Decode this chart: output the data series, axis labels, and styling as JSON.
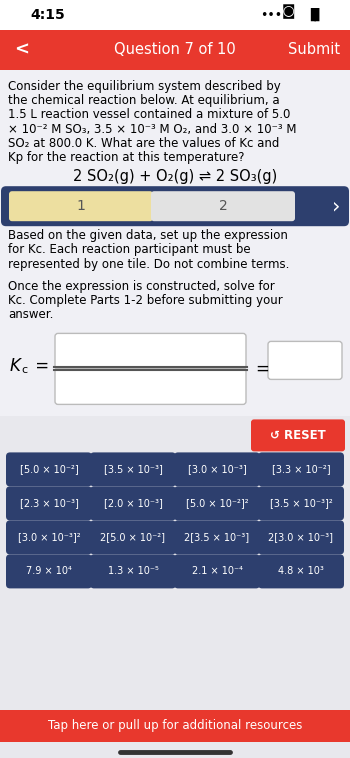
{
  "bg_color": "#f0f0f5",
  "white": "#ffffff",
  "header_color": "#e8382d",
  "header_text": "Question 7 of 10",
  "header_submit": "Submit",
  "header_back": "<",
  "status_time": "4:15",
  "problem_text_lines": [
    "Consider the equilibrium system described by",
    "the chemical reaction below. At equilibrium, a",
    "1.5 L reaction vessel contained a mixture of 5.0",
    "× 10⁻² M SO₃, 3.5 × 10⁻³ M O₂, and 3.0 × 10⁻³ M",
    "SO₂ at 800.0 K. What are the values of Kc and",
    "Kp for the reaction at this temperature?"
  ],
  "reaction": "2 SO₂(g) + O₂(g) ⇌ 2 SO₃(g)",
  "tab1": "1",
  "tab2": "2",
  "instruction1_lines": [
    "Based on the given data, set up the expression",
    "for Kc. Each reaction participant must be",
    "represented by one tile. Do not combine terms."
  ],
  "instruction2_lines": [
    "Once the expression is constructed, solve for",
    "Kc. Complete Parts 1-2 before submitting your",
    "answer."
  ],
  "tiles_bg_color": "#2d3f6e",
  "tiles": [
    [
      "[5.0 × 10⁻²]",
      "[3.5 × 10⁻³]",
      "[3.0 × 10⁻³]",
      "[3.3 × 10⁻²]"
    ],
    [
      "[2.3 × 10⁻³]",
      "[2.0 × 10⁻³]",
      "[5.0 × 10⁻²]²",
      "[3.5 × 10⁻³]²"
    ],
    [
      "[3.0 × 10⁻³]²",
      "2[5.0 × 10⁻²]",
      "2[3.5 × 10⁻³]",
      "2[3.0 × 10⁻³]"
    ],
    [
      "7.9 × 10⁴",
      "1.3 × 10⁻⁵",
      "2.1 × 10⁻⁴",
      "4.8 × 10³"
    ]
  ],
  "reset_color": "#e8382d",
  "footer_color": "#e8382d",
  "footer_text": "Tap here or pull up for additional resources",
  "tab_active_color": "#eddfa0",
  "tab_inactive_color": "#e2e2e2",
  "tab_bg_color": "#2d3f6e"
}
